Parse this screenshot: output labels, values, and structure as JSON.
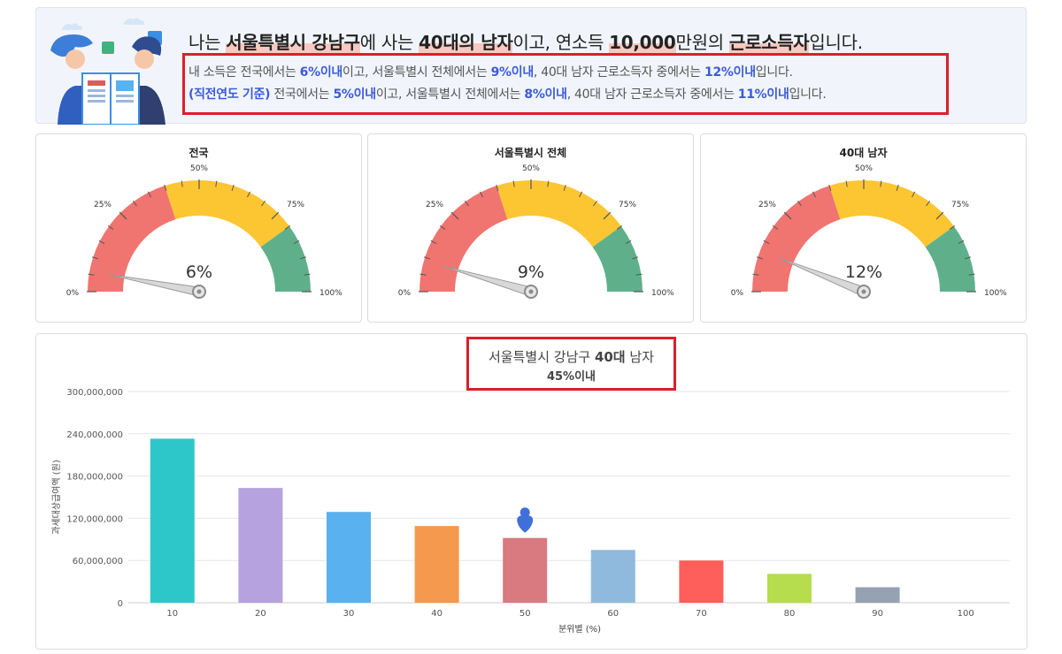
{
  "header": {
    "headline": {
      "prefix": "나는 ",
      "location": "서울특별시 강남구",
      "mid1": "에 사는 ",
      "demographic": "40대의 남자",
      "mid2": "이고, 연소득 ",
      "income": "10,000",
      "mid3": "만원의 ",
      "worker_type": "근로소득자",
      "suffix": "입니다."
    },
    "line1": {
      "a": "내 소득은 전국에서는 ",
      "v1": "6%이내",
      "b": "이고, 서울특별시 전체에서는 ",
      "v2": "9%이내",
      "c": ", 40대 남자 근로소득자 중에서는 ",
      "v3": "12%이내",
      "d": "입니다."
    },
    "line2": {
      "tag": "(직전연도 기준)",
      "a": " 전국에서는 ",
      "v1": "5%이내",
      "b": "이고, 서울특별시 전체에서는 ",
      "v2": "8%이내",
      "c": ", 40대 남자 근로소득자 중에서는 ",
      "v3": "11%이내",
      "d": "입니다."
    }
  },
  "gauge_labels": {
    "t0": "0%",
    "t25": "25%",
    "t50": "50%",
    "t75": "75%",
    "t100": "100%"
  },
  "gauges": [
    {
      "title": "전국",
      "value": 6,
      "value_label": "6%"
    },
    {
      "title": "서울특별시 전체",
      "value": 9,
      "value_label": "9%"
    },
    {
      "title": "40대 남자",
      "value": 12,
      "value_label": "12%"
    }
  ],
  "gauge_colors": {
    "red": "#f07470",
    "yellow": "#fcc633",
    "green": "#5fb08a"
  },
  "chart_data": {
    "type": "bar",
    "title_line1_a": "서울특별시 강남구 ",
    "title_line1_b": "40대",
    "title_line1_c": " 남자",
    "title_line2_value": "45%",
    "title_line2_suffix": "이내",
    "xlabel": "분위별 (%)",
    "ylabel": "과세대상급여액 (원)",
    "categories": [
      "10",
      "20",
      "30",
      "40",
      "50",
      "60",
      "70",
      "80",
      "90",
      "100"
    ],
    "values": [
      233000000,
      163000000,
      129000000,
      109000000,
      92000000,
      75000000,
      60000000,
      41000000,
      22000000,
      0
    ],
    "colors": [
      "#2ec7c9",
      "#b6a2de",
      "#5ab1ef",
      "#f5994e",
      "#d87a80",
      "#8fbadd",
      "#ff5f5a",
      "#b5dd4d",
      "#95a2b1",
      "#cccccc"
    ],
    "yticks": [
      0,
      60000000,
      120000000,
      180000000,
      240000000,
      300000000
    ],
    "ytick_labels": [
      "0",
      "60,000,000",
      "120,000,000",
      "180,000,000",
      "240,000,000",
      "300,000,000"
    ],
    "ylim": [
      0,
      300000000
    ],
    "marker_category": "50",
    "marker_color": "#3f6fd8"
  }
}
